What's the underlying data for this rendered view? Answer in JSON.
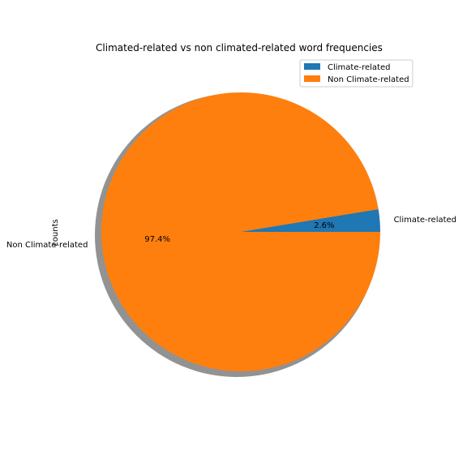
{
  "chart_data": {
    "type": "pie",
    "title": "Climated-related vs non climated-related word frequencies",
    "ylabel": "counts",
    "categories": [
      "Climate-related",
      "Non Climate-related"
    ],
    "values": [
      2.6,
      97.4
    ],
    "pct_labels": [
      "2.6%",
      "97.4%"
    ],
    "colors": [
      "#1f77b4",
      "#ff7f0e"
    ],
    "start_angle_deg": 0,
    "shadow": true,
    "legend": {
      "placement": "upper-right",
      "entries": [
        "Climate-related",
        "Non Climate-related"
      ]
    }
  }
}
